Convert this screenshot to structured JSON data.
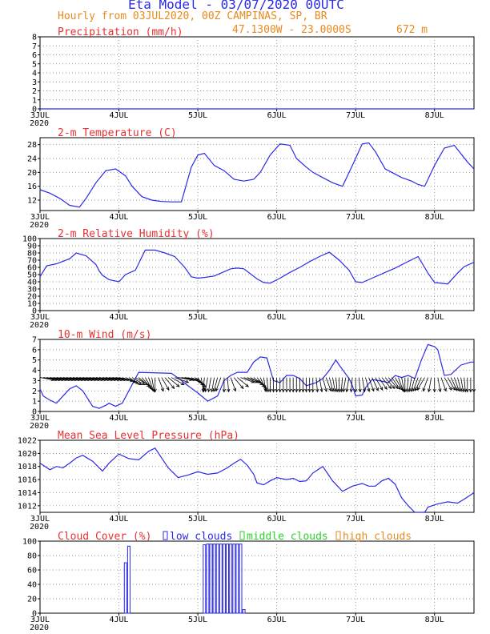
{
  "header": {
    "title": "Eta Model - 03/07/2020 00UTC",
    "subtitle": "Hourly from 03JUL2020, 00Z  CAMPINAS, SP, BR",
    "coords": "47.1300W - 23.0000S",
    "elevation": "672  m"
  },
  "colors": {
    "title": "#e83030",
    "series": "#2a2ae8",
    "header": "#e88a1e",
    "arrows": "#000000",
    "low_clouds": "#2a2ae8",
    "middle_clouds": "#2ad22a",
    "high_clouds": "#e88a1e"
  },
  "x_axis": {
    "tick_labels": [
      "3JUL",
      "4JUL",
      "5JUL",
      "6JUL",
      "7JUL",
      "8JUL"
    ],
    "tick_hours": [
      0,
      24,
      48,
      72,
      96,
      120
    ],
    "year_label": "2020",
    "xlim": [
      0,
      132
    ]
  },
  "chart_data": [
    {
      "type": "line",
      "title": "Precipitation (mm/h)",
      "ylim": [
        0,
        8
      ],
      "yticks": [
        "0",
        "1",
        "2",
        "3",
        "4",
        "5",
        "6",
        "7",
        "8"
      ],
      "x": [
        0,
        132
      ],
      "values": [
        0,
        0
      ]
    },
    {
      "type": "line",
      "title": "2-m Temperature (C)",
      "ylim": [
        9,
        30
      ],
      "yticks": [
        "12",
        "16",
        "20",
        "24",
        "28"
      ],
      "x": [
        0,
        3,
        6,
        9,
        12,
        14,
        17,
        20,
        23,
        26,
        28,
        31,
        34,
        37,
        40,
        43,
        46,
        48,
        50,
        53,
        56,
        59,
        62,
        65,
        67,
        70,
        73,
        76,
        78,
        81,
        83,
        86,
        89,
        92,
        95,
        98,
        100,
        102,
        105,
        107,
        110,
        113,
        115,
        117,
        120,
        123,
        126,
        130,
        132
      ],
      "values": [
        15,
        14,
        12.5,
        10.5,
        10,
        12.5,
        17,
        20.5,
        21,
        19,
        16,
        13,
        12,
        11.6,
        11.5,
        11.5,
        21.5,
        25,
        25.5,
        22,
        20.5,
        18,
        17.5,
        18,
        20,
        25,
        28.2,
        27.8,
        24,
        21.5,
        20,
        18.5,
        17,
        16,
        22,
        28.2,
        28.5,
        26,
        21,
        20,
        18.5,
        17.5,
        16.5,
        16,
        22,
        27,
        27.8,
        23,
        21
      ]
    },
    {
      "type": "line",
      "title": "2-m Relative Humidity (%)",
      "ylim": [
        0,
        100
      ],
      "yticks": [
        "0",
        "10",
        "20",
        "30",
        "40",
        "50",
        "60",
        "70",
        "80",
        "90",
        "100"
      ],
      "x": [
        0,
        2,
        5,
        9,
        11,
        14,
        17,
        18,
        19,
        21,
        24,
        26,
        29,
        32,
        35,
        38,
        41,
        44,
        46,
        48,
        50,
        53,
        56,
        58,
        60,
        62,
        66,
        68,
        70,
        73,
        76,
        79,
        82,
        85,
        88,
        91,
        94,
        96,
        98,
        101,
        105,
        108,
        111,
        115,
        118,
        120,
        124,
        127,
        129,
        132
      ],
      "values": [
        47,
        62,
        65,
        72,
        80,
        76,
        64,
        55,
        49,
        43,
        40,
        50,
        56,
        84,
        84,
        80,
        75,
        60,
        47,
        45,
        46,
        48,
        54,
        58,
        59,
        58,
        44,
        39,
        38,
        45,
        53,
        60,
        68,
        75,
        81,
        70,
        56,
        40,
        39,
        45,
        53,
        59,
        66,
        75,
        52,
        39,
        37,
        52,
        61,
        67
      ]
    },
    {
      "type": "line",
      "title": "10-m Wind (m/s)",
      "ylim": [
        0,
        7
      ],
      "yticks": [
        "0",
        "1",
        "2",
        "3",
        "4",
        "5",
        "6",
        "7"
      ],
      "x": [
        0,
        1,
        3,
        5,
        7,
        9,
        11,
        13,
        14,
        16,
        18,
        20,
        21,
        23,
        25,
        30,
        40,
        43,
        45,
        48,
        51,
        54,
        56,
        58,
        60,
        63,
        65,
        67,
        69,
        71,
        73,
        75,
        77,
        79,
        81,
        84,
        86,
        88,
        90,
        91,
        94,
        95,
        96,
        98,
        99,
        101,
        103,
        106,
        108,
        110,
        112,
        114,
        116,
        118,
        120,
        121,
        123,
        125,
        128,
        131,
        132
      ],
      "values": [
        2.2,
        1.5,
        1.1,
        0.8,
        1.5,
        2.2,
        2.5,
        2,
        1.5,
        0.5,
        0.3,
        0.6,
        0.8,
        0.5,
        0.8,
        3.8,
        3.7,
        3,
        2.5,
        1.8,
        1,
        1.5,
        3,
        3.5,
        3.8,
        3.8,
        4.8,
        5.3,
        5.2,
        3,
        2.8,
        3.5,
        3.5,
        3.2,
        2.5,
        2.8,
        3.2,
        4,
        5,
        4.5,
        3.2,
        2.5,
        1.5,
        1.6,
        2.3,
        3.1,
        3,
        2.8,
        3.5,
        3.3,
        3.5,
        3.2,
        5,
        6.5,
        6.3,
        6,
        3.5,
        3.6,
        4.5,
        4.8,
        4.8
      ],
      "arrow_dir_deg": [
        100,
        100,
        100,
        100,
        100,
        100,
        100,
        100,
        100,
        100,
        100,
        100,
        100,
        100,
        100,
        100,
        100,
        100,
        100,
        100,
        100,
        100,
        100,
        100,
        105,
        110,
        115,
        120,
        120,
        120,
        130,
        140,
        150,
        160,
        170,
        180,
        160,
        150,
        140,
        130,
        120,
        110,
        100,
        100,
        100,
        110,
        120,
        130,
        150,
        170,
        185,
        190,
        190,
        190,
        195,
        200,
        180,
        175,
        160,
        140,
        130,
        110,
        110,
        110,
        120,
        130,
        140,
        155,
        170,
        175,
        180,
        180,
        180,
        180,
        180,
        180,
        180,
        180,
        180,
        180,
        180,
        180,
        180,
        180,
        175,
        170,
        165,
        160,
        165,
        170,
        175,
        180,
        185,
        190,
        190,
        185,
        180,
        175,
        170,
        165,
        160,
        155,
        150,
        145,
        140,
        140,
        140,
        145,
        150,
        160,
        170,
        180,
        185,
        190,
        195,
        200,
        205,
        210,
        200,
        190,
        180,
        170,
        160,
        150,
        150,
        155,
        160,
        165,
        170,
        175,
        180,
        180,
        180
      ]
    },
    {
      "type": "line",
      "title": "Mean Sea Level Pressure (hPa)",
      "ylim": [
        1011,
        1022
      ],
      "yticks": [
        "1012",
        "1014",
        "1016",
        "1018",
        "1020",
        "1022"
      ],
      "x": [
        0,
        3,
        5,
        7,
        9,
        11,
        13,
        16,
        19,
        21,
        24,
        27,
        30,
        33,
        35,
        39,
        42,
        45,
        48,
        51,
        54,
        57,
        59,
        61,
        63,
        65,
        66,
        68,
        70,
        72,
        75,
        77,
        79,
        81,
        83,
        86,
        89,
        92,
        95,
        98,
        100,
        102,
        104,
        106,
        108,
        110,
        112,
        114,
        117,
        118,
        121,
        124,
        127,
        129,
        132
      ],
      "values": [
        1018.5,
        1017.5,
        1018,
        1017.8,
        1018.5,
        1019.3,
        1019.7,
        1018.8,
        1017.3,
        1018.5,
        1019.9,
        1019.2,
        1019,
        1020.3,
        1020.8,
        1017.8,
        1016.3,
        1016.7,
        1017.2,
        1016.8,
        1017,
        1017.8,
        1018.5,
        1019.1,
        1018.2,
        1016.8,
        1015.5,
        1015.2,
        1015.8,
        1016.3,
        1016,
        1016.2,
        1015.7,
        1015.8,
        1017,
        1018,
        1015.8,
        1014.2,
        1015,
        1015.4,
        1015,
        1015,
        1015.8,
        1016.2,
        1015.3,
        1013.2,
        1012,
        1011,
        1011,
        1011.8,
        1012.3,
        1012.6,
        1012.4,
        1013,
        1014
      ]
    },
    {
      "type": "bar",
      "title": "Cloud Cover (%)",
      "legend": [
        "low clouds",
        "middle clouds",
        "high clouds"
      ],
      "ylim": [
        0,
        100
      ],
      "yticks": [
        "0",
        "20",
        "40",
        "60",
        "80",
        "100"
      ],
      "series": [
        {
          "name": "low clouds",
          "x": [
            26,
            27,
            50,
            51,
            52,
            53,
            54,
            55,
            56,
            57,
            58,
            59,
            60,
            61,
            62
          ],
          "values": [
            70,
            93,
            95,
            96,
            96,
            96,
            96,
            96,
            96,
            96,
            96,
            96,
            96,
            96,
            5
          ]
        },
        {
          "name": "middle clouds",
          "x": [],
          "values": []
        },
        {
          "name": "high clouds",
          "x": [],
          "values": []
        }
      ]
    }
  ]
}
